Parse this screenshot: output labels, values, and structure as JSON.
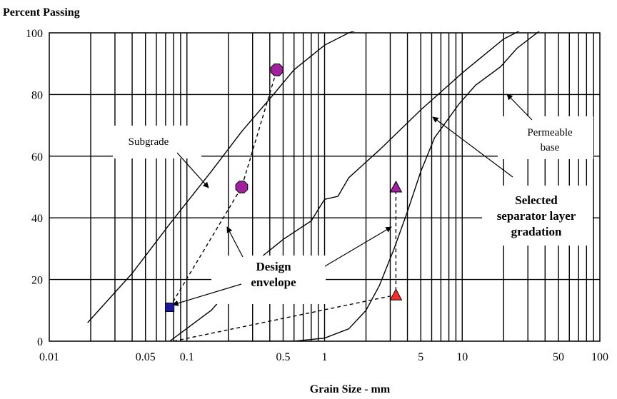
{
  "chart_data": {
    "type": "line",
    "title": "",
    "ylabel": "Percent Passing",
    "xlabel": "Grain Size - mm",
    "x_scale": "log",
    "xlim": [
      0.01,
      100
    ],
    "ylim": [
      0,
      100
    ],
    "grid": "log-vertical, horizontal every 20",
    "x_ticks": [
      "0.01",
      "0.05",
      "0.1",
      "0.5",
      "1",
      "5",
      "10",
      "50",
      "100"
    ],
    "y_ticks": [
      "0",
      "20",
      "40",
      "60",
      "80",
      "100"
    ],
    "series": [
      {
        "name": "Subgrade",
        "style": "solid",
        "x": [
          0.019,
          0.04,
          0.075,
          0.15,
          0.25,
          0.425,
          0.6,
          1.0,
          1.5,
          2.1
        ],
        "y": [
          6,
          22,
          38,
          55,
          68,
          80,
          88,
          96,
          100,
          102
        ]
      },
      {
        "name": "Selected separator layer gradation",
        "style": "solid",
        "x": [
          0.075,
          0.15,
          0.3,
          0.5,
          0.8,
          1.0,
          1.25,
          1.5,
          2.5,
          5.0,
          10,
          20,
          30
        ],
        "y": [
          0,
          10,
          25,
          33,
          39,
          46,
          47,
          53,
          62,
          75,
          87,
          98,
          102
        ]
      },
      {
        "name": "Permeable base",
        "style": "solid",
        "x": [
          0.2,
          0.6,
          1.0,
          1.5,
          2.0,
          2.5,
          3.2,
          4.0,
          5.0,
          6.3,
          9.5,
          12.5,
          19,
          25,
          40
        ],
        "y": [
          0,
          0,
          1,
          4,
          10,
          18,
          30,
          42,
          55,
          66,
          77,
          83,
          89,
          95,
          102
        ]
      },
      {
        "name": "Design envelope",
        "style": "dashed",
        "x": [
          0.075,
          0.25,
          0.45
        ],
        "y": [
          11,
          50,
          88
        ]
      },
      {
        "name": "Design envelope",
        "style": "dashed",
        "x": [
          0.08,
          3.3,
          3.3
        ],
        "y": [
          0,
          15,
          50
        ]
      }
    ],
    "markers": [
      {
        "shape": "square",
        "color": "#1a1aa0",
        "x": 0.075,
        "y": 11
      },
      {
        "shape": "octagon",
        "color": "#a020a0",
        "x": 0.25,
        "y": 50
      },
      {
        "shape": "octagon",
        "color": "#a020a0",
        "x": 0.45,
        "y": 88
      },
      {
        "shape": "triangle",
        "color": "#ff2a2a",
        "x": 3.3,
        "y": 15
      },
      {
        "shape": "triangle",
        "color": "#a020a0",
        "x": 3.3,
        "y": 50
      }
    ],
    "annotations": [
      {
        "text": "Subgrade",
        "lines": [
          "Subgrade"
        ]
      },
      {
        "text": "Permeable base",
        "lines": [
          "Permeable",
          "base"
        ]
      },
      {
        "text": "Selected separator layer gradation",
        "lines": [
          "Selected",
          "separator layer",
          "gradation"
        ]
      },
      {
        "text": "Design envelope",
        "lines": [
          "Design",
          "envelope"
        ]
      }
    ]
  }
}
